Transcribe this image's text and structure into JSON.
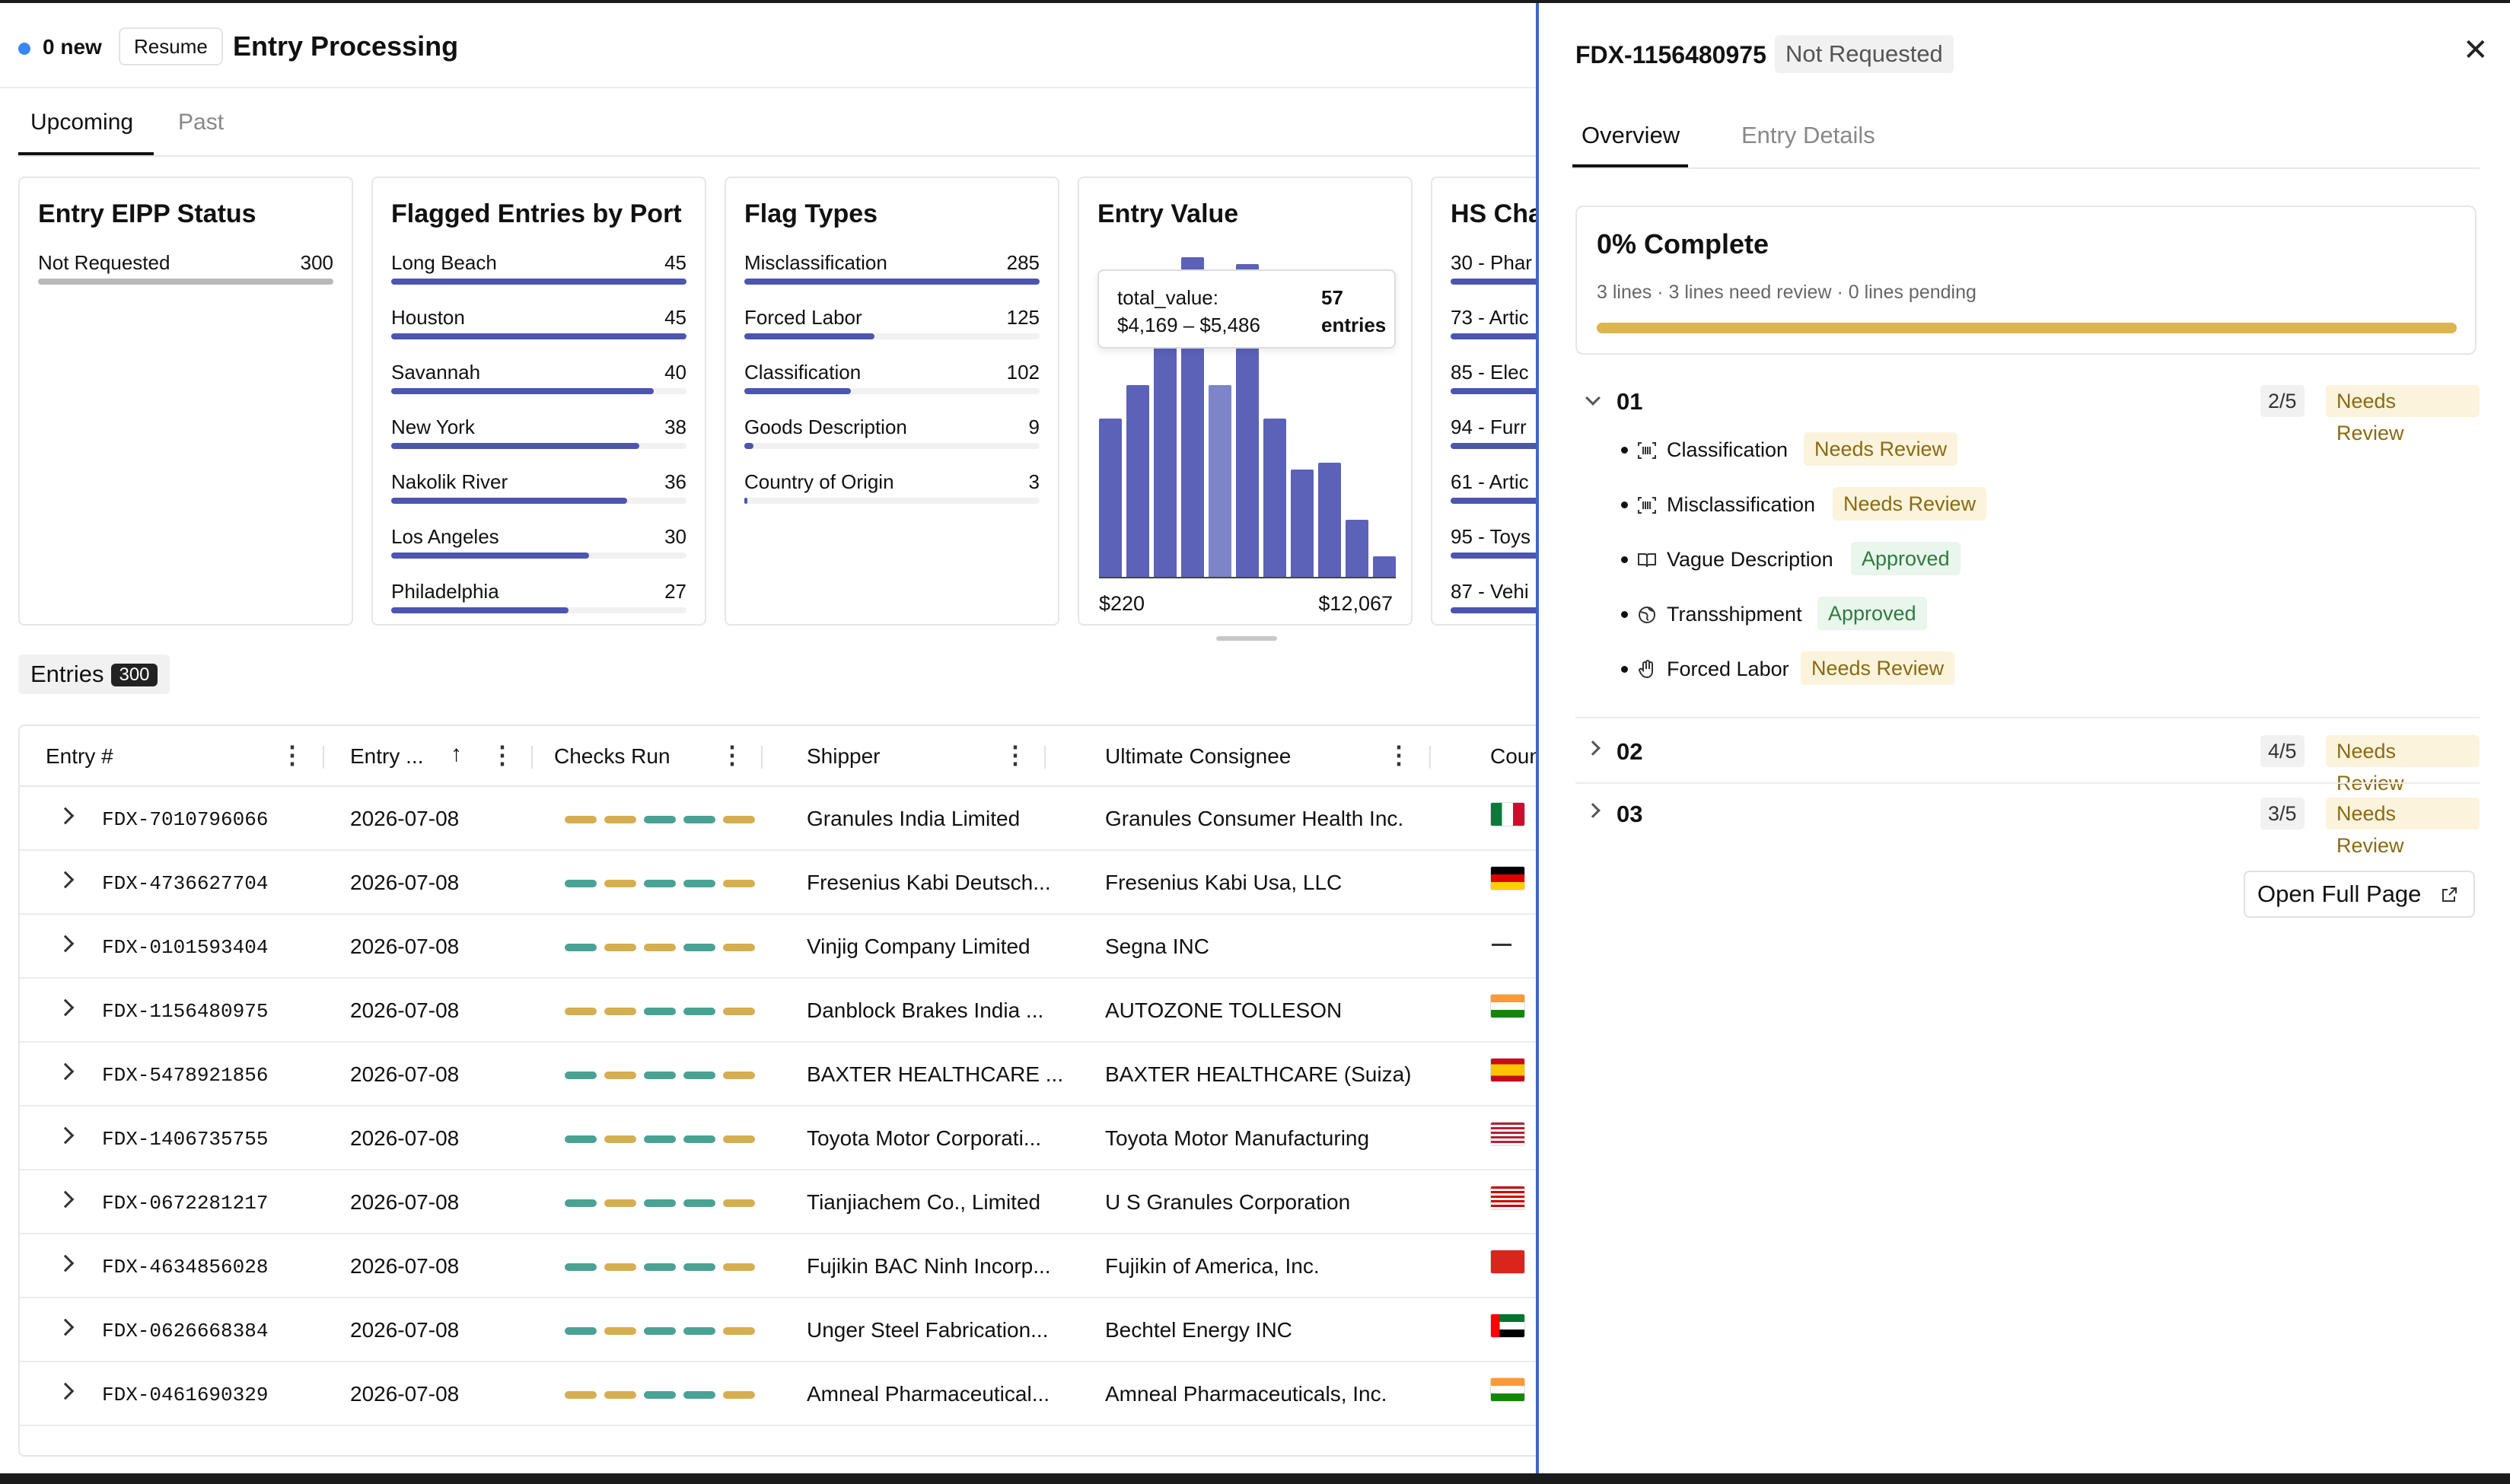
{
  "header": {
    "new_count": "0 new",
    "resume_label": "Resume",
    "title": "Entry Processing"
  },
  "tabs": [
    {
      "label": "Upcoming",
      "active": true
    },
    {
      "label": "Past",
      "active": false
    }
  ],
  "cards": {
    "eipp": {
      "title": "Entry EIPP Status",
      "rows": [
        {
          "label": "Not Requested",
          "value": "300",
          "fraction": 1.0
        }
      ]
    },
    "ports": {
      "title": "Flagged Entries by Port",
      "rows": [
        {
          "label": "Long Beach",
          "value": "45",
          "fraction": 1.0
        },
        {
          "label": "Houston",
          "value": "45",
          "fraction": 1.0
        },
        {
          "label": "Savannah",
          "value": "40",
          "fraction": 0.89
        },
        {
          "label": "New York",
          "value": "38",
          "fraction": 0.84
        },
        {
          "label": "Nakolik River",
          "value": "36",
          "fraction": 0.8
        },
        {
          "label": "Los Angeles",
          "value": "30",
          "fraction": 0.67
        },
        {
          "label": "Philadelphia",
          "value": "27",
          "fraction": 0.6
        }
      ]
    },
    "flags": {
      "title": "Flag Types",
      "rows": [
        {
          "label": "Misclassification",
          "value": "285",
          "fraction": 1.0
        },
        {
          "label": "Forced Labor",
          "value": "125",
          "fraction": 0.44
        },
        {
          "label": "Classification",
          "value": "102",
          "fraction": 0.36
        },
        {
          "label": "Goods Description",
          "value": "9",
          "fraction": 0.03
        },
        {
          "label": "Country of Origin",
          "value": "3",
          "fraction": 0.01
        }
      ]
    },
    "value": {
      "title": "Entry Value",
      "min_label": "$220",
      "max_label": "$12,067",
      "tooltip": {
        "key": "total_value:",
        "range": "$4,169 – $5,486",
        "count": "57",
        "unit": "entries"
      }
    },
    "hs": {
      "title": "HS Cha",
      "rows": [
        {
          "label": "30 - Phar",
          "fraction": 1.0
        },
        {
          "label": "73 - Artic",
          "fraction": 0.9
        },
        {
          "label": "85 - Elec",
          "fraction": 0.85
        },
        {
          "label": "94 - Furr",
          "fraction": 0.8
        },
        {
          "label": "61 - Artic",
          "fraction": 0.75
        },
        {
          "label": "95 - Toys",
          "fraction": 0.7
        },
        {
          "label": "87 - Vehi",
          "fraction": 0.65
        }
      ]
    }
  },
  "chart_data": {
    "type": "bar",
    "title": "Entry Value",
    "xlim": [
      "$220",
      "$12,067"
    ],
    "values": [
      47,
      57,
      80,
      95,
      57,
      93,
      47,
      32,
      34,
      17,
      6
    ],
    "highlighted_index": 4
  },
  "entries": {
    "label": "Entries",
    "count": "300"
  },
  "table": {
    "columns": [
      "Entry #",
      "Entry ...",
      "Checks Run",
      "Shipper",
      "Ultimate Consignee",
      "Coun"
    ],
    "rows": [
      {
        "entry": "FDX-7010796066",
        "date": "2026-07-08",
        "checks": [
          "y",
          "y",
          "t",
          "t",
          "y"
        ],
        "shipper": "Granules India Limited",
        "consignee": "Granules Consumer Health Inc.",
        "flag": "mx"
      },
      {
        "entry": "FDX-4736627704",
        "date": "2026-07-08",
        "checks": [
          "t",
          "y",
          "t",
          "t",
          "y"
        ],
        "shipper": "Fresenius Kabi Deutsch...",
        "consignee": "Fresenius Kabi Usa, LLC",
        "flag": "de"
      },
      {
        "entry": "FDX-0101593404",
        "date": "2026-07-08",
        "checks": [
          "t",
          "y",
          "y",
          "t",
          "y"
        ],
        "shipper": "Vinjig Company Limited",
        "consignee": "Segna INC",
        "flag": "none"
      },
      {
        "entry": "FDX-1156480975",
        "date": "2026-07-08",
        "checks": [
          "y",
          "y",
          "t",
          "t",
          "y"
        ],
        "shipper": "Danblock Brakes India ...",
        "consignee": "AUTOZONE TOLLESON",
        "flag": "in"
      },
      {
        "entry": "FDX-5478921856",
        "date": "2026-07-08",
        "checks": [
          "t",
          "y",
          "t",
          "t",
          "y"
        ],
        "shipper": "BAXTER HEALTHCARE ...",
        "consignee": "BAXTER HEALTHCARE (Suiza)",
        "flag": "es"
      },
      {
        "entry": "FDX-1406735755",
        "date": "2026-07-08",
        "checks": [
          "t",
          "y",
          "t",
          "t",
          "y"
        ],
        "shipper": "Toyota Motor Corporati...",
        "consignee": "Toyota Motor Manufacturing",
        "flag": "us"
      },
      {
        "entry": "FDX-0672281217",
        "date": "2026-07-08",
        "checks": [
          "t",
          "y",
          "t",
          "t",
          "y"
        ],
        "shipper": "Tianjiachem Co., Limited",
        "consignee": "U S Granules Corporation",
        "flag": "my"
      },
      {
        "entry": "FDX-4634856028",
        "date": "2026-07-08",
        "checks": [
          "t",
          "y",
          "t",
          "t",
          "y"
        ],
        "shipper": "Fujikin BAC Ninh Incorp...",
        "consignee": "Fujikin of America, Inc.",
        "flag": "vn"
      },
      {
        "entry": "FDX-0626668384",
        "date": "2026-07-08",
        "checks": [
          "t",
          "y",
          "t",
          "t",
          "y"
        ],
        "shipper": "Unger Steel Fabrication...",
        "consignee": "Bechtel Energy INC",
        "flag": "ae"
      },
      {
        "entry": "FDX-0461690329",
        "date": "2026-07-08",
        "checks": [
          "y",
          "y",
          "t",
          "t",
          "y"
        ],
        "shipper": "Amneal Pharmaceutical...",
        "consignee": "Amneal Pharmaceuticals, Inc.",
        "flag": "in"
      }
    ]
  },
  "panel": {
    "entry_id": "FDX-1156480975",
    "status": "Not Requested",
    "tabs": [
      {
        "label": "Overview",
        "active": true
      },
      {
        "label": "Entry Details",
        "active": false
      }
    ],
    "progress": {
      "title": "0% Complete",
      "subtitle": "3 lines · 3 lines need review · 0 lines pending",
      "fraction": 1.0
    },
    "lines": [
      {
        "num": "01",
        "count": "2/5",
        "status": "Needs Review",
        "expanded": true,
        "checks": [
          {
            "label": "Classification",
            "status": "Needs Review",
            "icon": "barcode-icon"
          },
          {
            "label": "Misclassification",
            "status": "Needs Review",
            "icon": "barcode-icon"
          },
          {
            "label": "Vague Description",
            "status": "Approved",
            "icon": "book-icon"
          },
          {
            "label": "Transshipment",
            "status": "Approved",
            "icon": "globe-icon"
          },
          {
            "label": "Forced Labor",
            "status": "Needs Review",
            "icon": "hand-icon"
          }
        ]
      },
      {
        "num": "02",
        "count": "4/5",
        "status": "Needs Review",
        "expanded": false
      },
      {
        "num": "03",
        "count": "3/5",
        "status": "Needs Review",
        "expanded": false
      }
    ],
    "open_full_page": "Open Full Page"
  }
}
